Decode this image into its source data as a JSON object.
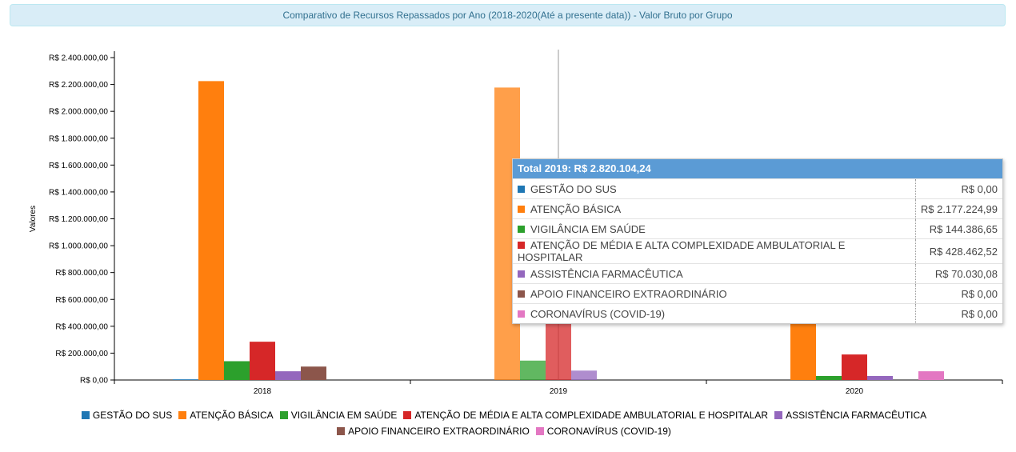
{
  "header": {
    "title": "Comparativo de Recursos Repassados por Ano (2018-2020(Até a presente data)) - Valor Bruto por Grupo"
  },
  "chart_data": {
    "type": "bar",
    "ylabel": "Valores",
    "xlabel": "",
    "ylim": [
      0,
      2400000
    ],
    "yticks": [
      0,
      200000,
      400000,
      600000,
      800000,
      1000000,
      1200000,
      1400000,
      1600000,
      1800000,
      2000000,
      2200000,
      2400000
    ],
    "ytick_labels": [
      "R$ 0,00",
      "R$ 200.000,00",
      "R$ 400.000,00",
      "R$ 600.000,00",
      "R$ 800.000,00",
      "R$ 1.000.000,00",
      "R$ 1.200.000,00",
      "R$ 1.400.000,00",
      "R$ 1.600.000,00",
      "R$ 1.800.000,00",
      "R$ 2.000.000,00",
      "R$ 2.200.000,00",
      "R$ 2.400.000,00"
    ],
    "categories": [
      "2018",
      "2019",
      "2020"
    ],
    "legend_position": "bottom",
    "grid": false,
    "series": [
      {
        "name": "GESTÃO DO SUS",
        "color": "#1f77b4",
        "values": [
          5000,
          0,
          0
        ]
      },
      {
        "name": "ATENÇÃO BÁSICA",
        "color": "#ff7f0e",
        "values": [
          2225000,
          2177224.99,
          470000
        ]
      },
      {
        "name": "VIGILÂNCIA EM SAÚDE",
        "color": "#2ca02c",
        "values": [
          140000,
          144386.65,
          30000
        ]
      },
      {
        "name": "ATENÇÃO DE MÉDIA E ALTA COMPLEXIDADE AMBULATORIAL E HOSPITALAR",
        "color": "#d62728",
        "values": [
          285000,
          428462.52,
          190000
        ]
      },
      {
        "name": "ASSISTÊNCIA FARMACÊUTICA",
        "color": "#9467bd",
        "values": [
          65000,
          70030.08,
          30000
        ]
      },
      {
        "name": "APOIO FINANCEIRO EXTRAORDINÁRIO",
        "color": "#8c564b",
        "values": [
          100000,
          0,
          0
        ]
      },
      {
        "name": "CORONAVÍRUS (COVID-19)",
        "color": "#e377c2",
        "values": [
          0,
          0,
          65000
        ]
      }
    ]
  },
  "tooltip": {
    "title": "Total 2019: R$ 2.820.104,24",
    "rows": [
      {
        "label": "GESTÃO DO SUS",
        "value": "R$ 0,00",
        "color": "#1f77b4"
      },
      {
        "label": "ATENÇÃO BÁSICA",
        "value": "R$ 2.177.224,99",
        "color": "#ff7f0e"
      },
      {
        "label": "VIGILÂNCIA EM SAÚDE",
        "value": "R$ 144.386,65",
        "color": "#2ca02c"
      },
      {
        "label": "ATENÇÃO DE MÉDIA E ALTA COMPLEXIDADE AMBULATORIAL E HOSPITALAR",
        "value": "R$ 428.462,52",
        "color": "#d62728"
      },
      {
        "label": "ASSISTÊNCIA FARMACÊUTICA",
        "value": "R$ 70.030,08",
        "color": "#9467bd"
      },
      {
        "label": "APOIO FINANCEIRO EXTRAORDINÁRIO",
        "value": "R$ 0,00",
        "color": "#8c564b"
      },
      {
        "label": "CORONAVÍRUS (COVID-19)",
        "value": "R$ 0,00",
        "color": "#e377c2"
      }
    ]
  }
}
